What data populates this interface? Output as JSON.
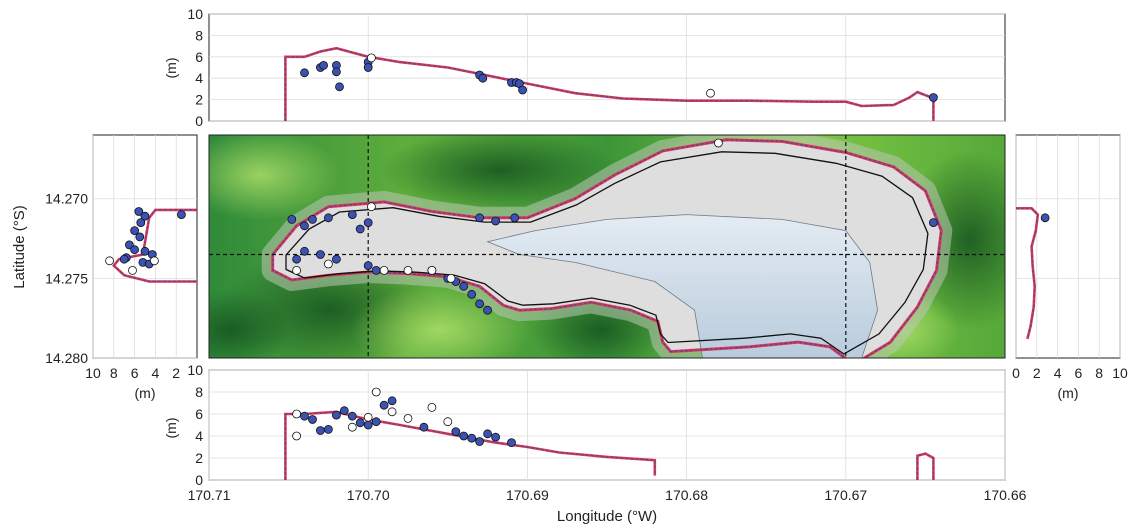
{
  "chart_data": [
    {
      "id": "top",
      "type": "line",
      "ylabel": "(m)",
      "xlim": [
        170.71,
        170.66
      ],
      "ylim": [
        0,
        10
      ],
      "yticks": [
        0,
        2,
        4,
        6,
        8,
        10
      ],
      "grid": true,
      "profile": [
        [
          170.7052,
          0
        ],
        [
          170.7052,
          6.0
        ],
        [
          170.704,
          6.0
        ],
        [
          170.703,
          6.5
        ],
        [
          170.702,
          6.8
        ],
        [
          170.701,
          6.4
        ],
        [
          170.7,
          6.0
        ],
        [
          170.698,
          5.5
        ],
        [
          170.695,
          5.0
        ],
        [
          170.693,
          4.4
        ],
        [
          170.69,
          3.5
        ],
        [
          170.687,
          2.6
        ],
        [
          170.684,
          2.1
        ],
        [
          170.68,
          1.9
        ],
        [
          170.676,
          1.9
        ],
        [
          170.672,
          1.8
        ],
        [
          170.67,
          1.8
        ],
        [
          170.669,
          1.4
        ],
        [
          170.667,
          1.5
        ],
        [
          170.666,
          2.2
        ],
        [
          170.6655,
          2.7
        ],
        [
          170.6648,
          2.3
        ],
        [
          170.6645,
          2.0
        ],
        [
          170.6645,
          0
        ]
      ],
      "filled_points": [
        [
          170.704,
          4.5
        ],
        [
          170.703,
          5.0
        ],
        [
          170.7028,
          5.2
        ],
        [
          170.702,
          5.2
        ],
        [
          170.702,
          4.6
        ],
        [
          170.7018,
          3.2
        ],
        [
          170.7,
          5.5
        ],
        [
          170.7,
          5.0
        ],
        [
          170.693,
          4.3
        ],
        [
          170.6928,
          4.0
        ],
        [
          170.691,
          3.6
        ],
        [
          170.6907,
          3.6
        ],
        [
          170.6905,
          3.5
        ],
        [
          170.6903,
          2.9
        ],
        [
          170.6645,
          2.2
        ]
      ],
      "open_points": [
        [
          170.6998,
          5.9
        ],
        [
          170.6785,
          2.6
        ]
      ]
    },
    {
      "id": "bottom",
      "type": "line",
      "ylabel": "(m)",
      "xlim": [
        170.71,
        170.66
      ],
      "ylim": [
        10,
        0
      ],
      "yticks": [
        0,
        2,
        4,
        6,
        8,
        10
      ],
      "xticks": [
        170.71,
        170.7,
        170.69,
        170.68,
        170.67,
        170.66
      ],
      "xticklabels": [
        "170.71",
        "170.70",
        "170.69",
        "170.68",
        "170.67",
        "170.66"
      ],
      "xlabel": "Longitude (°W)",
      "grid": true,
      "profile": [
        [
          170.7052,
          0
        ],
        [
          170.7052,
          6.0
        ],
        [
          170.704,
          6.0
        ],
        [
          170.702,
          6.2
        ],
        [
          170.7,
          5.5
        ],
        [
          170.698,
          5.0
        ],
        [
          170.695,
          4.2
        ],
        [
          170.692,
          3.4
        ],
        [
          170.69,
          3.0
        ],
        [
          170.688,
          2.5
        ],
        [
          170.685,
          2.1
        ],
        [
          170.682,
          1.8
        ],
        [
          170.682,
          0.4
        ]
      ],
      "profile2": [
        [
          170.6655,
          0
        ],
        [
          170.6655,
          2.2
        ],
        [
          170.665,
          2.4
        ],
        [
          170.6645,
          2.0
        ],
        [
          170.6645,
          0
        ]
      ],
      "filled_points": [
        [
          170.704,
          5.8
        ],
        [
          170.7035,
          5.5
        ],
        [
          170.703,
          4.5
        ],
        [
          170.7025,
          4.6
        ],
        [
          170.702,
          5.9
        ],
        [
          170.7015,
          6.3
        ],
        [
          170.701,
          5.8
        ],
        [
          170.7005,
          5.2
        ],
        [
          170.7,
          5.0
        ],
        [
          170.6995,
          5.3
        ],
        [
          170.699,
          6.8
        ],
        [
          170.6985,
          7.2
        ],
        [
          170.6965,
          4.8
        ],
        [
          170.6945,
          4.4
        ],
        [
          170.694,
          4.0
        ],
        [
          170.6935,
          3.8
        ],
        [
          170.693,
          3.5
        ],
        [
          170.6925,
          4.2
        ],
        [
          170.692,
          3.9
        ],
        [
          170.691,
          3.4
        ]
      ],
      "open_points": [
        [
          170.7045,
          4.0
        ],
        [
          170.7045,
          6.0
        ],
        [
          170.701,
          4.8
        ],
        [
          170.7,
          5.7
        ],
        [
          170.6985,
          6.2
        ],
        [
          170.6975,
          5.6
        ],
        [
          170.696,
          6.6
        ],
        [
          170.695,
          5.3
        ],
        [
          170.6995,
          8.0
        ]
      ]
    },
    {
      "id": "left",
      "type": "line",
      "xlabel": "(m)",
      "ylabel": "Latitude (°S)",
      "xlim": [
        10,
        0
      ],
      "ylim": [
        14.28,
        14.266
      ],
      "xticks": [
        10,
        8,
        6,
        4,
        2
      ],
      "yticks": [
        14.27,
        14.275,
        14.28
      ],
      "yticklabels": [
        "14.270",
        "14.275",
        "14.280"
      ],
      "grid": true,
      "profile": [
        [
          0,
          14.2707
        ],
        [
          4.0,
          14.2707
        ],
        [
          4.6,
          14.2712
        ],
        [
          5.2,
          14.2735
        ],
        [
          7.5,
          14.2738
        ],
        [
          8.0,
          14.2742
        ],
        [
          7.0,
          14.2748
        ],
        [
          4.6,
          14.2752
        ],
        [
          0,
          14.2752
        ]
      ],
      "filled_points": [
        [
          5.6,
          14.2708
        ],
        [
          5.0,
          14.2711
        ],
        [
          5.4,
          14.2715
        ],
        [
          6.0,
          14.272
        ],
        [
          5.5,
          14.2724
        ],
        [
          6.5,
          14.2729
        ],
        [
          6.0,
          14.2732
        ],
        [
          5.0,
          14.2733
        ],
        [
          4.3,
          14.2735
        ],
        [
          6.8,
          14.2737
        ],
        [
          5.2,
          14.274
        ],
        [
          4.6,
          14.2741
        ],
        [
          7.0,
          14.2738
        ],
        [
          1.5,
          14.271
        ]
      ],
      "open_points": [
        [
          8.4,
          14.2739
        ],
        [
          6.2,
          14.2745
        ],
        [
          4.1,
          14.2739
        ]
      ]
    },
    {
      "id": "right",
      "type": "line",
      "xlabel": "(m)",
      "xlim": [
        0,
        10
      ],
      "ylim": [
        14.28,
        14.266
      ],
      "xticks": [
        0,
        2,
        4,
        6,
        8,
        10
      ],
      "grid": true,
      "profile": [
        [
          0,
          14.2706
        ],
        [
          1.5,
          14.2706
        ],
        [
          2.1,
          14.271
        ],
        [
          1.9,
          14.272
        ],
        [
          1.5,
          14.273
        ],
        [
          1.6,
          14.2742
        ],
        [
          1.8,
          14.2755
        ],
        [
          1.7,
          14.2768
        ],
        [
          1.4,
          14.278
        ],
        [
          1.1,
          14.2788
        ]
      ],
      "filled_points": [
        [
          2.8,
          14.2712
        ]
      ]
    },
    {
      "id": "map",
      "type": "scatter",
      "xlim": [
        170.71,
        170.66
      ],
      "ylim": [
        14.28,
        14.266
      ],
      "crosshair_x": [
        170.7,
        170.67
      ],
      "crosshair_y": 14.2735,
      "coastline": [
        [
          170.706,
          14.2735
        ],
        [
          170.7045,
          14.2717
        ],
        [
          170.7025,
          14.2705
        ],
        [
          170.699,
          14.2702
        ],
        [
          170.696,
          14.2708
        ],
        [
          170.693,
          14.2712
        ],
        [
          170.69,
          14.2712
        ],
        [
          170.687,
          14.27
        ],
        [
          170.6845,
          14.2685
        ],
        [
          170.6815,
          14.267
        ],
        [
          170.6775,
          14.2663
        ],
        [
          170.674,
          14.2664
        ],
        [
          170.67,
          14.2671
        ],
        [
          170.667,
          14.268
        ],
        [
          170.665,
          14.2695
        ],
        [
          170.664,
          14.272
        ],
        [
          170.6643,
          14.2745
        ],
        [
          170.6655,
          14.2768
        ],
        [
          170.6672,
          14.279
        ],
        [
          170.6695,
          14.2804
        ],
        [
          170.671,
          14.2793
        ],
        [
          170.673,
          14.279
        ],
        [
          170.676,
          14.2793
        ],
        [
          170.681,
          14.2796
        ],
        [
          170.6815,
          14.279
        ],
        [
          170.6818,
          14.2777
        ],
        [
          170.6835,
          14.277
        ],
        [
          170.686,
          14.2765
        ],
        [
          170.6885,
          14.2769
        ],
        [
          170.6905,
          14.277
        ],
        [
          170.6915,
          14.2767
        ],
        [
          170.693,
          14.2755
        ],
        [
          170.695,
          14.2749
        ],
        [
          170.6975,
          14.2747
        ],
        [
          170.7,
          14.2746
        ],
        [
          170.7025,
          14.2748
        ],
        [
          170.7048,
          14.2751
        ],
        [
          170.706,
          14.2745
        ]
      ],
      "lagoon": [
        [
          170.679,
          14.28
        ],
        [
          170.6795,
          14.277
        ],
        [
          170.682,
          14.2752
        ],
        [
          170.687,
          14.274
        ],
        [
          170.6905,
          14.2735
        ],
        [
          170.6925,
          14.2727
        ],
        [
          170.6895,
          14.272
        ],
        [
          170.685,
          14.2713
        ],
        [
          170.68,
          14.271
        ],
        [
          170.674,
          14.2713
        ],
        [
          170.67,
          14.272
        ],
        [
          170.6685,
          14.274
        ],
        [
          170.668,
          14.277
        ],
        [
          170.669,
          14.28
        ]
      ],
      "filled_points": [
        [
          170.7048,
          14.2713
        ],
        [
          170.704,
          14.2717
        ],
        [
          170.7035,
          14.2713
        ],
        [
          170.7025,
          14.2712
        ],
        [
          170.701,
          14.271
        ],
        [
          170.7005,
          14.2719
        ],
        [
          170.7,
          14.2715
        ],
        [
          170.704,
          14.2733
        ],
        [
          170.7045,
          14.2738
        ],
        [
          170.703,
          14.2735
        ],
        [
          170.702,
          14.2738
        ],
        [
          170.7,
          14.2742
        ],
        [
          170.6995,
          14.2745
        ],
        [
          170.696,
          14.2745
        ],
        [
          170.695,
          14.275
        ],
        [
          170.6945,
          14.2752
        ],
        [
          170.694,
          14.2755
        ],
        [
          170.6935,
          14.276
        ],
        [
          170.693,
          14.2766
        ],
        [
          170.6925,
          14.277
        ],
        [
          170.693,
          14.2712
        ],
        [
          170.692,
          14.2714
        ],
        [
          170.6908,
          14.2712
        ],
        [
          170.6645,
          14.2715
        ]
      ],
      "open_points": [
        [
          170.7045,
          14.2745
        ],
        [
          170.7025,
          14.2741
        ],
        [
          170.6998,
          14.2705
        ],
        [
          170.699,
          14.2745
        ],
        [
          170.6975,
          14.2745
        ],
        [
          170.696,
          14.2745
        ],
        [
          170.6948,
          14.275
        ],
        [
          170.678,
          14.2665
        ]
      ]
    }
  ],
  "colors": {
    "profile_red": "#e8344a",
    "profile_blue": "#3a4fb5",
    "point_fill": "#3b52b3",
    "open_fill": "#ffffff",
    "point_edge": "#111111",
    "grid": "#dddddd",
    "land_dark": "#1f6f2c",
    "land_light": "#8fd145",
    "reef": "#dcdcdc",
    "lagoon": "#c5d5e3"
  }
}
